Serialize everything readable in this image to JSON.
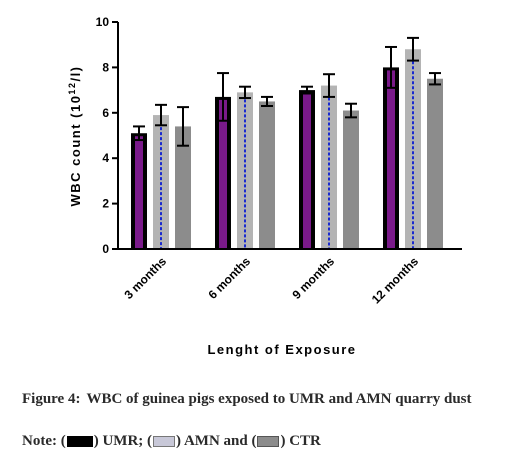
{
  "chart_data": {
    "type": "bar",
    "ylabel": "WBC count (10",
    "ylabel_sup": "12",
    "ylabel_end": "/l)",
    "xlabel": "Lenght of Exposure",
    "categories": [
      "3 months",
      "6 months",
      "9 months",
      "12 months"
    ],
    "ylim": [
      0,
      10
    ],
    "yticks": [
      "0",
      "2",
      "4",
      "6",
      "8",
      "10"
    ],
    "series": [
      {
        "name": "UMR",
        "values": [
          5.1,
          6.7,
          7.0,
          8.0
        ],
        "errors": [
          0.3,
          1.05,
          0.15,
          0.9
        ],
        "color": "#000000",
        "accent": "#7a1a8a"
      },
      {
        "name": "AMN",
        "values": [
          5.9,
          6.9,
          7.2,
          8.8
        ],
        "errors": [
          0.45,
          0.25,
          0.5,
          0.5
        ],
        "color": "#b4b4b4",
        "accent": "#1a2ad0"
      },
      {
        "name": "CTR",
        "values": [
          5.4,
          6.5,
          6.1,
          7.5
        ],
        "errors": [
          0.85,
          0.2,
          0.3,
          0.25
        ],
        "color": "#8c8c8c",
        "accent": "#8c8c8c"
      }
    ]
  },
  "caption": {
    "figure_label": "Figure 4:",
    "text": "WBC of guinea pigs exposed to UMR and AMN quarry dust"
  },
  "note": {
    "prefix": "Note: (",
    "umr": ") UMR; (",
    "amn": ") AMN and (",
    "ctr": ") CTR"
  }
}
